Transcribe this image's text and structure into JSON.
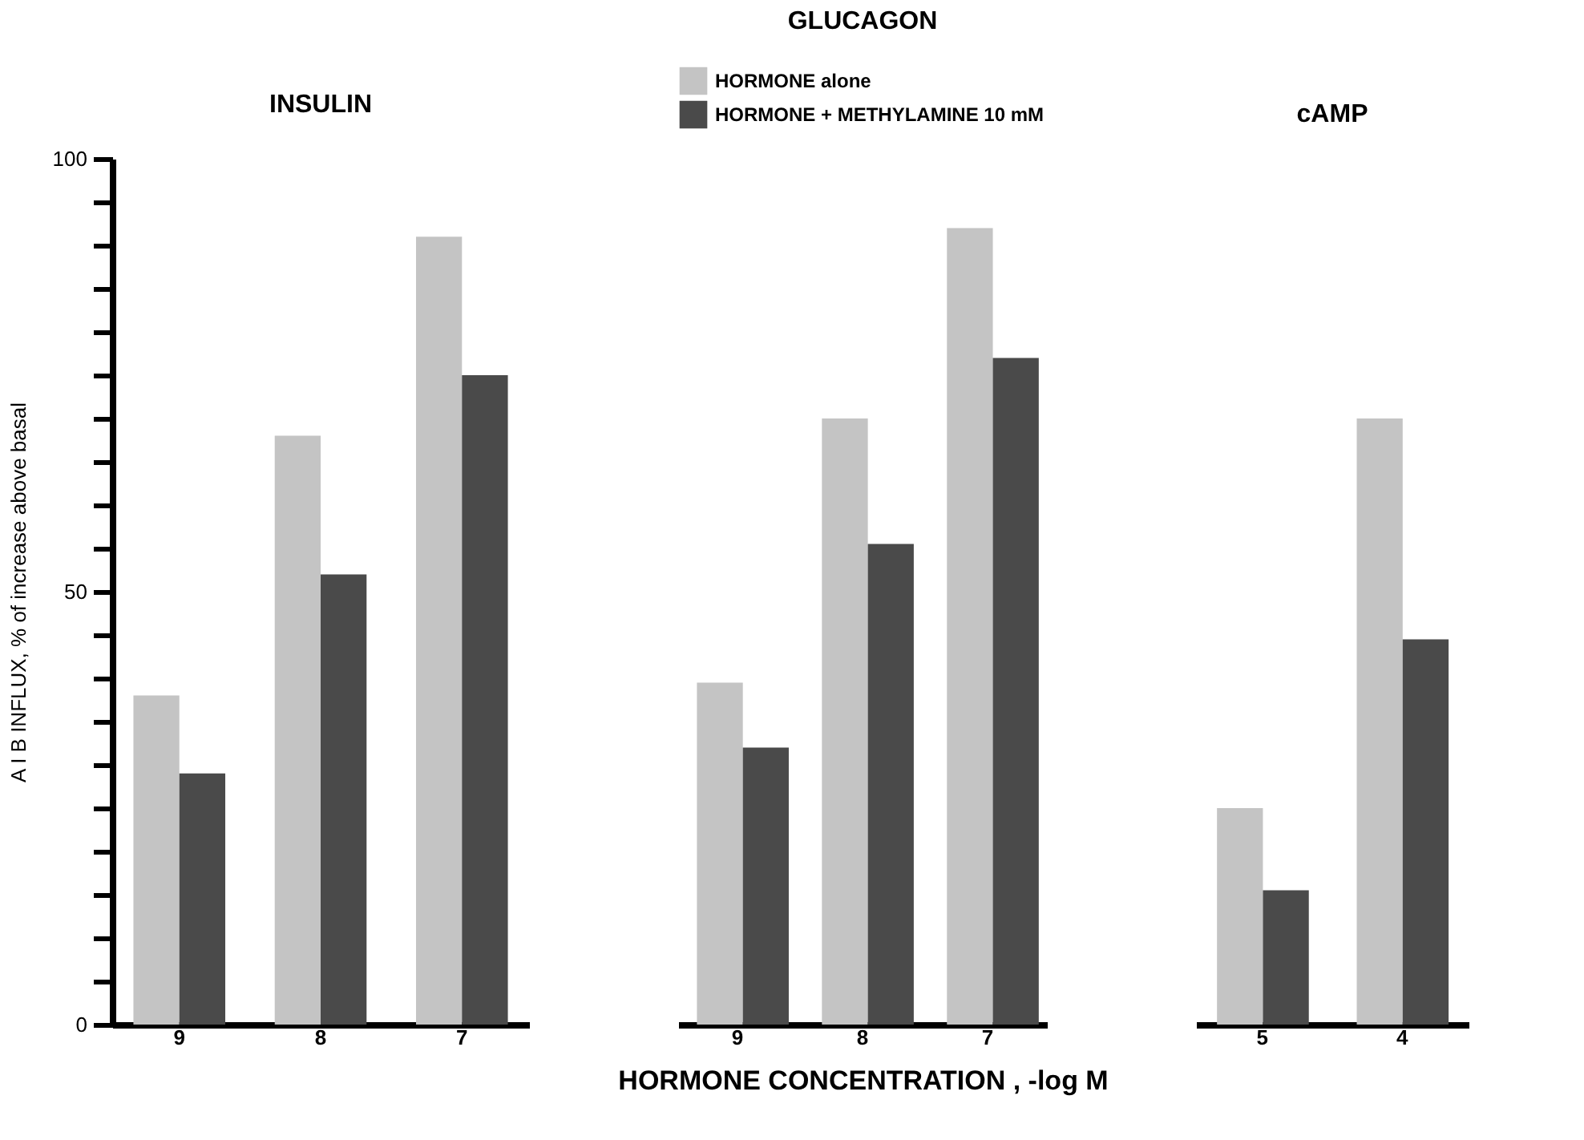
{
  "chart_data": [
    {
      "type": "bar",
      "title": "INSULIN",
      "ylabel": "A I B  INFLUX, % of increase above basal",
      "categories": [
        "9",
        "8",
        "7"
      ],
      "series": [
        {
          "color": "#c4c4c4",
          "values": [
            38,
            68,
            91
          ]
        },
        {
          "color": "#4a4a4a",
          "values": [
            29,
            52,
            75
          ]
        }
      ],
      "ylim": [
        0,
        100
      ],
      "yticks": [
        0,
        {
          "value": 5,
          "label": null
        },
        {
          "value": 10,
          "label": null
        },
        {
          "value": 15,
          "label": null
        },
        {
          "value": 20,
          "label": null
        },
        {
          "value": 25,
          "label": null
        },
        {
          "value": 30,
          "label": null
        },
        {
          "value": 35,
          "label": null
        },
        {
          "value": 40,
          "label": null
        },
        {
          "value": 45,
          "label": null
        },
        50,
        {
          "value": 55,
          "label": null
        },
        {
          "value": 60,
          "label": null
        },
        {
          "value": 65,
          "label": null
        },
        {
          "value": 70,
          "label": null
        },
        {
          "value": 75,
          "label": null
        },
        {
          "value": 80,
          "label": null
        },
        {
          "value": 85,
          "label": null
        },
        {
          "value": 90,
          "label": null
        },
        {
          "value": 95,
          "label": null
        },
        100
      ],
      "grid": false,
      "legend": false
    },
    {
      "type": "bar",
      "title": "GLUCAGON",
      "xlabel": "HORMONE    CONCENTRATION ,  -log M",
      "categories": [
        "9",
        "8",
        "7"
      ],
      "series": [
        {
          "name": "HORMONE alone",
          "color": "#c4c4c4",
          "values": [
            39.5,
            70,
            92
          ]
        },
        {
          "name": "HORMONE + METHYLAMINE   10 mM",
          "color": "#4a4a4a",
          "values": [
            32,
            55.5,
            77
          ]
        }
      ],
      "ylim": [
        0,
        100
      ],
      "tick_labels": "x",
      "grid": false,
      "legend": "top"
    },
    {
      "type": "bar",
      "title": "cAMP",
      "categories": [
        "5",
        "4"
      ],
      "series": [
        {
          "color": "#c4c4c4",
          "values": [
            25,
            70
          ]
        },
        {
          "color": "#4a4a4a",
          "values": [
            15.5,
            44.5
          ]
        }
      ],
      "ylim": [
        0,
        100
      ],
      "tick_labels": "x",
      "grid": false,
      "legend": false
    }
  ]
}
